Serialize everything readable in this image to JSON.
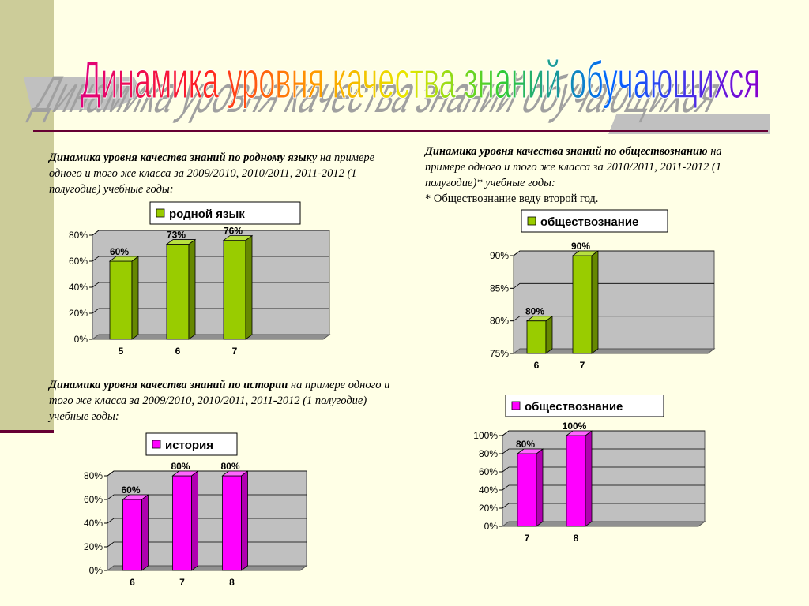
{
  "title": "Динамика уровня качества знаний обучающихся",
  "descriptions": {
    "native": {
      "bold": "Динамика уровня качества знаний по родному языку",
      "rest": " на примере одного и того же класса за 2009/2010, 2010/2011, 2011-2012 (1 полугодие) учебные годы:"
    },
    "history": {
      "bold": "Динамика уровня качества знаний по истории",
      "rest": " на примере одного и того же класса за 2009/2010, 2010/2011, 2011-2012 (1 полугодие) учебные годы:"
    },
    "social": {
      "bold": "Динамика уровня качества знаний по обществознанию",
      "rest": " на примере одного и того же класса за 2010/2011, 2011-2012 (1 полугодие)* учебные годы:",
      "note": "* Обществознание веду второй год."
    }
  },
  "colors": {
    "green": "#99cc00",
    "green_side": "#668800",
    "green_top": "#b8e040",
    "magenta": "#ff00ff",
    "magenta_side": "#b000b0",
    "magenta_top": "#ff66ff",
    "plot_bg": "#c0c0c0",
    "floor": "#909090"
  },
  "chart_data": [
    {
      "id": "native",
      "type": "bar",
      "categories": [
        "5",
        "6",
        "7"
      ],
      "series": [
        {
          "name": "родной язык",
          "values": [
            60,
            73,
            76
          ]
        }
      ],
      "data_labels": [
        "60%",
        "73%",
        "76%"
      ],
      "ylim": [
        0,
        80
      ],
      "yticks": [
        0,
        20,
        40,
        60,
        80
      ],
      "ytick_labels": [
        "0%",
        "20%",
        "40%",
        "60%",
        "80%"
      ],
      "legend": "top",
      "grid": true,
      "color": "green"
    },
    {
      "id": "social1",
      "type": "bar",
      "categories": [
        "6",
        "7"
      ],
      "series": [
        {
          "name": "обществознание",
          "values": [
            80,
            90
          ]
        }
      ],
      "data_labels": [
        "80%",
        "90%"
      ],
      "ylim": [
        75,
        90
      ],
      "yticks": [
        75,
        80,
        85,
        90
      ],
      "ytick_labels": [
        "75%",
        "80%",
        "85%",
        "90%"
      ],
      "legend": "top",
      "grid": true,
      "color": "green"
    },
    {
      "id": "history",
      "type": "bar",
      "categories": [
        "6",
        "7",
        "8"
      ],
      "series": [
        {
          "name": "история",
          "values": [
            60,
            80,
            80
          ]
        }
      ],
      "data_labels": [
        "60%",
        "80%",
        "80%"
      ],
      "ylim": [
        0,
        80
      ],
      "yticks": [
        0,
        20,
        40,
        60,
        80
      ],
      "ytick_labels": [
        "0%",
        "20%",
        "40%",
        "60%",
        "80%"
      ],
      "legend": "top",
      "grid": true,
      "color": "magenta"
    },
    {
      "id": "social2",
      "type": "bar",
      "categories": [
        "7",
        "8"
      ],
      "series": [
        {
          "name": "обществознание",
          "values": [
            80,
            100
          ]
        }
      ],
      "data_labels": [
        "80%",
        "100%"
      ],
      "ylim": [
        0,
        100
      ],
      "yticks": [
        0,
        20,
        40,
        60,
        80,
        100
      ],
      "ytick_labels": [
        "0%",
        "20%",
        "40%",
        "60%",
        "80%",
        "100%"
      ],
      "legend": "top",
      "grid": true,
      "color": "magenta"
    }
  ]
}
